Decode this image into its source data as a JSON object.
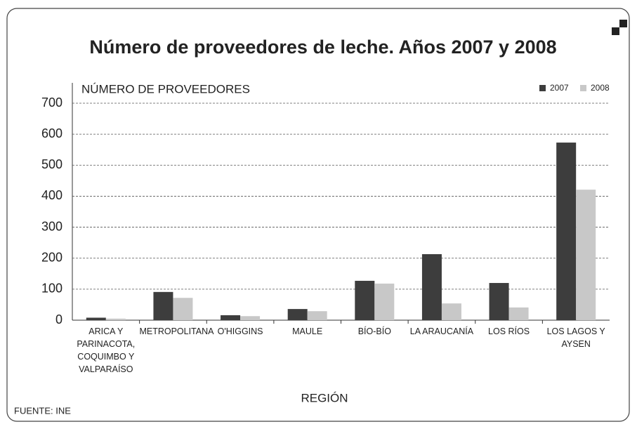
{
  "chart_data": {
    "type": "bar",
    "title": "Número de proveedores de leche. Años 2007 y 2008",
    "y_label": "NÚMERO DE PROVEEDORES",
    "x_label": "REGIÓN",
    "source": "FUENTE: INE",
    "categories": [
      "ARICA Y PARINACOTA, COQUIMBO Y VALPARAÍSO",
      "METROPOLITANA",
      "O'HIGGINS",
      "MAULE",
      "BÍO-BÍO",
      "LA ARAUCANÍA",
      "LOS RÍOS",
      "LOS LAGOS Y AYSEN"
    ],
    "series": [
      {
        "name": "2007",
        "color": "#3d3d3d",
        "values": [
          8,
          91,
          16,
          36,
          127,
          213,
          120,
          573
        ]
      },
      {
        "name": "2008",
        "color": "#c8c8c8",
        "values": [
          5,
          72,
          13,
          29,
          118,
          54,
          41,
          421
        ]
      }
    ],
    "ylim": [
      0,
      700
    ],
    "yticks": [
      0,
      100,
      200,
      300,
      400,
      500,
      600,
      700
    ],
    "grid": true,
    "legend": "top-right"
  }
}
